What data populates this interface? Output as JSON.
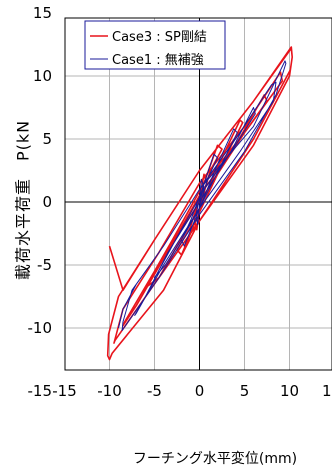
{
  "chart_data": {
    "type": "line",
    "title": "",
    "xlabel": "フーチング水平変位(mm)",
    "ylabel": "載荷水平荷重　P(kN",
    "xlim": [
      -15,
      15
    ],
    "ylim": [
      -15,
      15
    ],
    "xticks": [
      "-15",
      "-10",
      "-5",
      "0",
      "5",
      "10",
      "1"
    ],
    "yticks": [
      "15",
      "10",
      "5",
      "0",
      "-5",
      "-10",
      "-15"
    ],
    "grid": true,
    "legend_position": "top-left",
    "series": [
      {
        "name": "Case3 : SP剛結",
        "color": "#e8141c",
        "x": [
          0,
          0.8,
          0.5,
          0,
          -0.6,
          -0.3,
          0,
          1.2,
          2.5,
          2,
          0.5,
          -1,
          -2.5,
          -2,
          0,
          3.2,
          4.8,
          4.5,
          2.5,
          0,
          -2.5,
          -4.5,
          -6,
          -5.8,
          -3,
          0.5,
          5,
          7.5,
          7.2,
          4,
          0,
          -4,
          -7,
          -8.5,
          -8.3,
          -5,
          0,
          5,
          9.2,
          9,
          5,
          0,
          -4.5,
          -8.5,
          -9.5,
          -9.4,
          -5,
          0,
          6,
          10.1,
          10.3,
          10.2,
          6,
          0,
          -5,
          -9,
          -10.1,
          -10.2,
          -10,
          -9.7,
          -4,
          0,
          6,
          10,
          10.3,
          10.2,
          6,
          0,
          -5,
          -8.5,
          -10
        ],
        "y": [
          0,
          1.5,
          2.2,
          0.2,
          -1.2,
          -2.2,
          -0.5,
          2.5,
          4.2,
          4.5,
          1.5,
          -2,
          -3.8,
          -4.2,
          -0.8,
          4,
          6.3,
          6.5,
          3.5,
          -0.5,
          -3.5,
          -6,
          -6.8,
          -6.5,
          -3,
          1.5,
          5.5,
          8,
          8.5,
          4.5,
          0.5,
          -4.5,
          -8.2,
          -9.8,
          -9.5,
          -5.5,
          0,
          5.5,
          9.6,
          10.3,
          6,
          1.5,
          -4,
          -8.5,
          -11.2,
          -11,
          -6.5,
          -1.5,
          5,
          10.5,
          11.5,
          12.3,
          8,
          2.5,
          -3,
          -7.5,
          -10.5,
          -12.2,
          -12.5,
          -12,
          -7,
          -1.5,
          4.5,
          10,
          11.5,
          12.2,
          8,
          2.5,
          -3,
          -7,
          -3.5
        ]
      },
      {
        "name": "Case1 : 無補強",
        "color": "#1a1a99",
        "x": [
          0,
          0.5,
          0.2,
          0,
          -0.4,
          -0.2,
          0,
          1,
          2,
          1.6,
          0.3,
          -1,
          -2,
          -1.7,
          0,
          2.8,
          4.2,
          3.8,
          2,
          0,
          -2,
          -3.8,
          -5,
          -4.8,
          -2.5,
          0.5,
          4,
          6.2,
          6,
          3.5,
          0,
          -3.5,
          -6,
          -7.2,
          -7,
          -4,
          0,
          4.5,
          8.2,
          8.5,
          8,
          4.5,
          0,
          -4,
          -7.5,
          -8.5,
          -8.6,
          -4.5,
          0,
          5,
          8.5,
          9.6,
          9.5,
          6,
          0,
          -4,
          -7,
          -8.5,
          -9
        ],
        "y": [
          0,
          1.2,
          1.8,
          0.2,
          -1,
          -1.8,
          -0.3,
          2,
          3.5,
          3.8,
          1,
          -1.5,
          -3,
          -3.5,
          -0.5,
          3.5,
          5.5,
          5.8,
          3,
          -0.5,
          -3,
          -5,
          -6,
          -5.8,
          -2.8,
          1,
          4.5,
          7,
          7.5,
          4,
          0,
          -4,
          -7.5,
          -9,
          -8.8,
          -5,
          -0.5,
          4,
          8,
          9.5,
          9.3,
          5.5,
          1,
          -3.5,
          -7,
          -9.5,
          -10.2,
          -6,
          -1,
          4,
          8.5,
          11,
          11.2,
          6,
          1,
          -3.5,
          -6.5,
          -8.5,
          -10
        ]
      }
    ]
  }
}
